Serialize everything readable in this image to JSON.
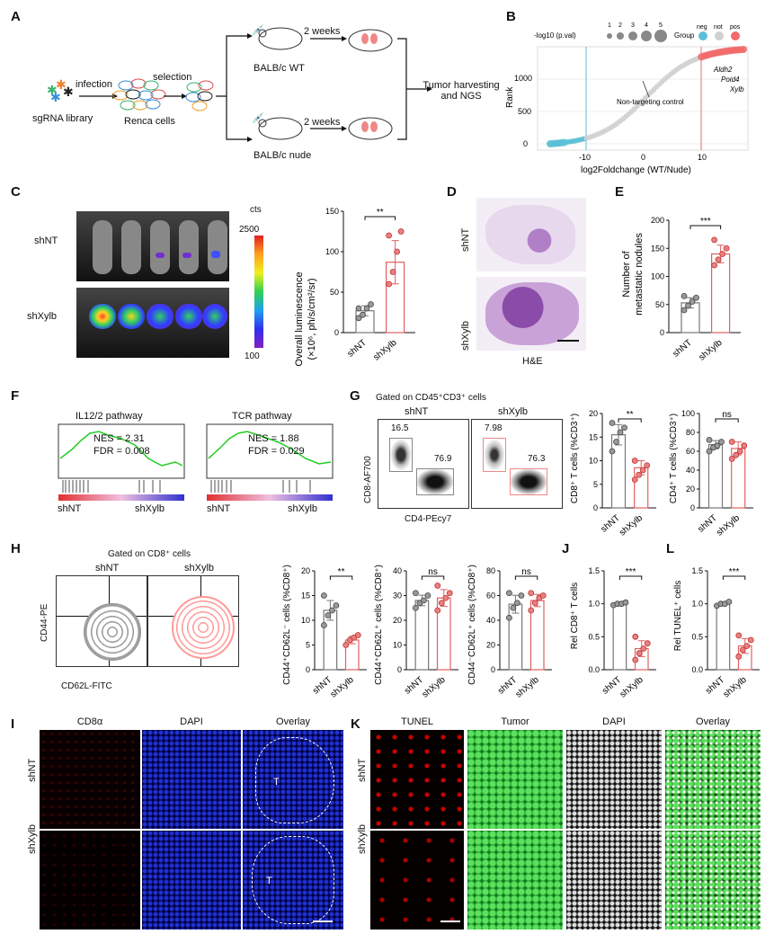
{
  "panels": {
    "A": {
      "letter": "A",
      "infection": "infection",
      "selection": "selection",
      "sgRNA": "sgRNA library",
      "renca": "Renca cells",
      "weeks_top": "2 weeks",
      "weeks_bottom": "2 weeks",
      "wt": "BALB/c WT",
      "nude": "BALB/c nude",
      "harvest_line1": "Tumor harvesting",
      "harvest_line2": "and NGS"
    },
    "B": {
      "letter": "B",
      "size_legend_title": "-log10 (p.val)",
      "size_legend": [
        "1",
        "2",
        "3",
        "4",
        "5"
      ],
      "group_title": "Group",
      "groups": [
        "neg",
        "not",
        "pos"
      ],
      "group_colors": [
        "#5bbfd6",
        "#d0d0d0",
        "#f26a6a"
      ],
      "ylabel": "Rank",
      "xlabel": "log2Foldchange (WT/Nude)",
      "yticks": [
        "0",
        "500",
        "1000"
      ],
      "xticks": [
        "-10",
        "0",
        "10"
      ],
      "annot_control": "Non-targeting control",
      "genes": [
        "Aldh2",
        "Poid4",
        "Xylb"
      ]
    },
    "C": {
      "letter": "C",
      "cts": "cts",
      "scale_max": "2500",
      "scale_min": "100",
      "row1": "shNT",
      "row2": "shXylb",
      "ylabel_line1": "Overall luminescence",
      "ylabel_line2": "(×10⁶, ph/s/cm²/sr)",
      "yticks": [
        "0",
        "50",
        "100",
        "150"
      ],
      "cats": [
        "shNT",
        "shXylb"
      ],
      "sig": "**"
    },
    "D": {
      "letter": "D",
      "row1": "shNT",
      "row2": "shXylb",
      "stain": "H&E"
    },
    "E": {
      "letter": "E",
      "ylabel_line1": "Number of",
      "ylabel_line2": "metastatic nodules",
      "yticks": [
        "0",
        "50",
        "100",
        "150",
        "200"
      ],
      "cats": [
        "shNT",
        "shXylb"
      ],
      "sig": "***"
    },
    "F": {
      "letter": "F",
      "p1_title": "IL12/2 pathway",
      "p1_nes": "NES = 2.31",
      "p1_fdr": "FDR = 0.008",
      "p2_title": "TCR pathway",
      "p2_nes": "NES = 1.88",
      "p2_fdr": "FDR = 0.029",
      "left": "shNT",
      "right": "shXylb"
    },
    "G": {
      "letter": "G",
      "gate": "Gated on CD45⁺CD3⁺ cells",
      "col1": "shNT",
      "col2": "shXylb",
      "q1a": "16.5",
      "q1b": "76.9",
      "q2a": "7.98",
      "q2b": "76.3",
      "ylabel": "CD8-AF700",
      "xlabel": "CD4-PEcy7",
      "bar1_ylabel": "CD8⁺ T cells (%CD3⁺)",
      "bar1_ticks": [
        "0",
        "5",
        "10",
        "15",
        "20"
      ],
      "bar1_sig": "**",
      "bar2_ylabel": "CD4⁺ T cells (%CD3⁺)",
      "bar2_ticks": [
        "0",
        "20",
        "40",
        "60",
        "80",
        "100"
      ],
      "bar2_sig": "ns",
      "cats": [
        "shNT",
        "shXylb"
      ]
    },
    "H": {
      "letter": "H",
      "gate": "Gated on CD8⁺ cells",
      "col1": "shNT",
      "col2": "shXylb",
      "ylabel": "CD44-PE",
      "xlabel": "CD62L-FITC",
      "bar1_ylabel": "CD44⁺CD62L⁻ cells (%CD8⁺)",
      "bar1_ticks": [
        "0",
        "5",
        "10",
        "15",
        "20"
      ],
      "bar1_sig": "**",
      "bar2_ylabel": "CD44⁺CD62L⁺ cells (%CD8⁺)",
      "bar2_ticks": [
        "0",
        "10",
        "20",
        "30",
        "40"
      ],
      "bar2_sig": "ns",
      "bar3_ylabel": "CD44⁻CD62L⁺ cells (%CD8⁺)",
      "bar3_ticks": [
        "0",
        "20",
        "40",
        "60",
        "80"
      ],
      "bar3_sig": "ns",
      "cats": [
        "shNT",
        "shXylb"
      ]
    },
    "J": {
      "letter": "J",
      "ylabel": "Rel CD8⁺ T cells",
      "ticks": [
        "0.0",
        "0.5",
        "1.0",
        "1.5"
      ],
      "sig": "***",
      "cats": [
        "shNT",
        "shXylb"
      ]
    },
    "L": {
      "letter": "L",
      "ylabel": "Rel TUNEL⁺ cells",
      "ticks": [
        "0.0",
        "0.5",
        "1.0",
        "1.5"
      ],
      "sig": "***",
      "cats": [
        "shNT",
        "shXylb"
      ]
    },
    "I": {
      "letter": "I",
      "cols": [
        "CD8α",
        "DAPI",
        "Overlay"
      ],
      "rows": [
        "shNT",
        "shXylb"
      ],
      "tumor": "T"
    },
    "K": {
      "letter": "K",
      "cols": [
        "TUNEL",
        "Tumor",
        "DAPI",
        "Overlay"
      ],
      "rows": [
        "shNT",
        "shXylb"
      ]
    }
  },
  "chart_data": [
    {
      "panel": "C",
      "type": "bar",
      "categories": [
        "shNT",
        "shXylb"
      ],
      "values": [
        27,
        87
      ],
      "points": [
        [
          18,
          22,
          30,
          35,
          30
        ],
        [
          60,
          75,
          100,
          125,
          120
        ]
      ],
      "ylim": [
        0,
        150
      ],
      "ylabel": "Overall luminescence (×10⁶, ph/s/cm²/sr)"
    },
    {
      "panel": "E",
      "type": "bar",
      "categories": [
        "shNT",
        "shXylb"
      ],
      "values": [
        53,
        140
      ],
      "points": [
        [
          40,
          48,
          55,
          62,
          65
        ],
        [
          120,
          130,
          140,
          150,
          165
        ]
      ],
      "ylim": [
        0,
        200
      ],
      "ylabel": "Number of metastatic nodules"
    },
    {
      "panel": "G1",
      "type": "bar",
      "categories": [
        "shNT",
        "shXylb"
      ],
      "values": [
        15.5,
        8.5
      ],
      "points": [
        [
          12,
          14,
          16,
          17,
          18
        ],
        [
          6,
          7,
          8,
          9,
          10
        ]
      ],
      "ylim": [
        0,
        20
      ],
      "ylabel": "CD8⁺ T cells (%CD3⁺)"
    },
    {
      "panel": "G2",
      "type": "bar",
      "categories": [
        "shNT",
        "shXylb"
      ],
      "values": [
        67,
        63
      ],
      "points": [
        [
          60,
          64,
          66,
          70,
          72
        ],
        [
          52,
          56,
          60,
          66,
          70
        ]
      ],
      "ylim": [
        0,
        100
      ],
      "ylabel": "CD4⁺ T cells (%CD3⁺)"
    },
    {
      "panel": "H1",
      "type": "bar",
      "categories": [
        "shNT",
        "shXylb"
      ],
      "values": [
        12,
        6
      ],
      "points": [
        [
          9,
          11,
          12,
          13,
          15
        ],
        [
          5,
          6,
          6.5,
          7
        ]
      ],
      "ylim": [
        0,
        20
      ],
      "ylabel": "CD44⁺CD62L⁻ cells (%CD8⁺)"
    },
    {
      "panel": "H2",
      "type": "bar",
      "categories": [
        "shNT",
        "shXylb"
      ],
      "values": [
        28,
        29
      ],
      "points": [
        [
          25,
          27,
          28,
          30,
          31
        ],
        [
          24,
          27,
          29,
          31,
          34
        ]
      ],
      "ylim": [
        0,
        40
      ],
      "ylabel": "CD44⁺CD62L⁺ cells (%CD8⁺)"
    },
    {
      "panel": "H3",
      "type": "bar",
      "categories": [
        "shNT",
        "shXylb"
      ],
      "values": [
        53,
        56
      ],
      "points": [
        [
          42,
          50,
          54,
          60,
          62
        ],
        [
          48,
          54,
          58,
          60,
          62
        ]
      ],
      "ylim": [
        0,
        80
      ],
      "ylabel": "CD44⁻CD62L⁺ cells (%CD8⁺)"
    },
    {
      "panel": "J",
      "type": "bar",
      "categories": [
        "shNT",
        "shXylb"
      ],
      "values": [
        1.0,
        0.32
      ],
      "points": [
        [
          0.98,
          1.0,
          1.0,
          1.02
        ],
        [
          0.15,
          0.25,
          0.32,
          0.4,
          0.5
        ]
      ],
      "ylim": [
        0,
        1.5
      ],
      "ylabel": "Rel CD8⁺ T cells"
    },
    {
      "panel": "L",
      "type": "bar",
      "categories": [
        "shNT",
        "shXylb"
      ],
      "values": [
        1.0,
        0.36
      ],
      "points": [
        [
          0.97,
          1.0,
          1.0,
          1.03
        ],
        [
          0.2,
          0.3,
          0.36,
          0.45,
          0.52
        ]
      ],
      "ylim": [
        0,
        1.5
      ],
      "ylabel": "Rel TUNEL⁺ cells"
    }
  ]
}
